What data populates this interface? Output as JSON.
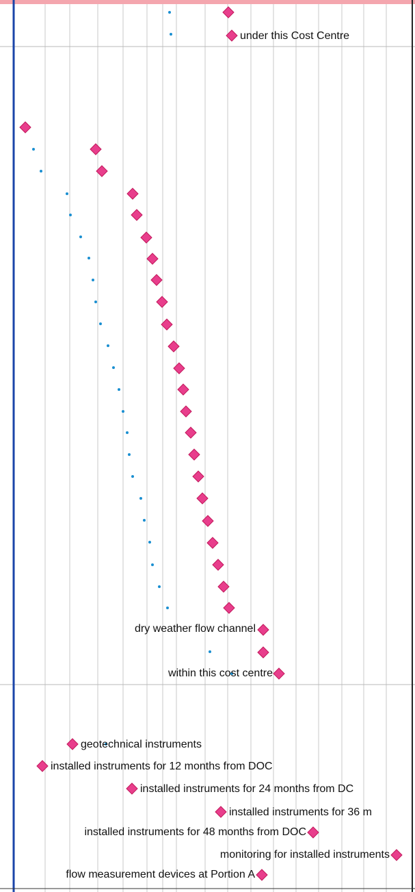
{
  "colors": {
    "milestone": "#e83e8c",
    "milestone_stroke": "#c2185b",
    "link_dot": "#1a8fd1",
    "left_border": "#1a44a8",
    "grid": "#c8c8c8",
    "top_band": "#f4a6ae"
  },
  "gantt": {
    "milestones": [
      {
        "label": ""
      },
      {
        "label": "under this Cost Centre"
      },
      {
        "label": ""
      },
      {
        "label": ""
      },
      {
        "label": ""
      },
      {
        "label": ""
      },
      {
        "label": ""
      },
      {
        "label": ""
      },
      {
        "label": ""
      },
      {
        "label": ""
      },
      {
        "label": ""
      },
      {
        "label": ""
      },
      {
        "label": ""
      },
      {
        "label": ""
      },
      {
        "label": ""
      },
      {
        "label": ""
      },
      {
        "label": ""
      },
      {
        "label": ""
      },
      {
        "label": ""
      },
      {
        "label": ""
      },
      {
        "label": ""
      },
      {
        "label": ""
      },
      {
        "label": ""
      },
      {
        "label": ""
      },
      {
        "label": ""
      },
      {
        "label": ""
      },
      {
        "label": ""
      },
      {
        "label": ""
      },
      {
        "label": "dry weather flow channel"
      },
      {
        "label": ""
      },
      {
        "label": "within this cost centre"
      },
      {
        "label": "geotechnical instruments"
      },
      {
        "label": "installed instruments for 12 months from DOC"
      },
      {
        "label": "installed instruments for 24 months from DC"
      },
      {
        "label": "installed instruments for 36 m"
      },
      {
        "label": "installed instruments for 48 months from DOC"
      },
      {
        "label": "monitoring for installed instruments"
      },
      {
        "label": "flow measurement devices at Portion A"
      }
    ]
  }
}
